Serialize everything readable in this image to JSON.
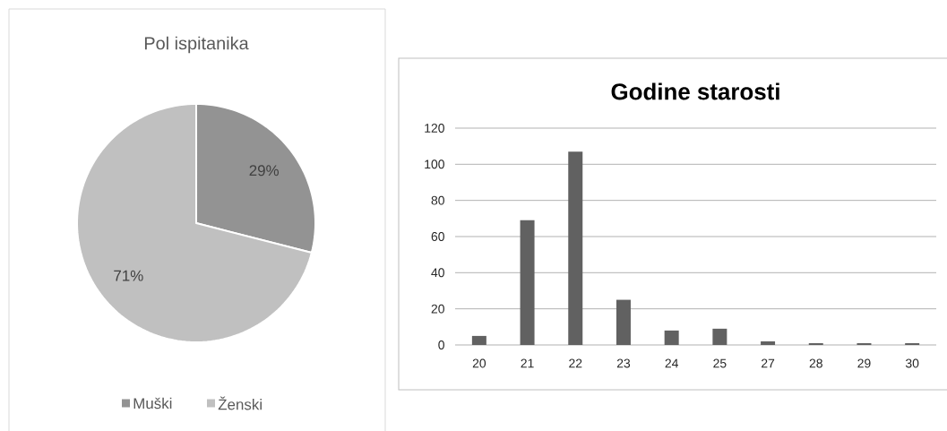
{
  "chart_data": [
    {
      "type": "pie",
      "title": "Pol ispitanika",
      "categories": [
        "Muški",
        "Ženski"
      ],
      "values": [
        29,
        71
      ],
      "colors": [
        "#939393",
        "#c0c0c0"
      ],
      "value_labels": [
        "29%",
        "71%"
      ],
      "legend": "bottom"
    },
    {
      "type": "bar",
      "title": "Godine starosti",
      "categories": [
        "20",
        "21",
        "22",
        "23",
        "24",
        "25",
        "27",
        "28",
        "29",
        "30"
      ],
      "values": [
        5,
        69,
        107,
        25,
        8,
        9,
        2,
        1,
        1,
        1
      ],
      "color": "#616161",
      "ylim": [
        0,
        120
      ],
      "yticks": [
        0,
        20,
        40,
        60,
        80,
        100,
        120
      ],
      "grid": "y"
    }
  ]
}
